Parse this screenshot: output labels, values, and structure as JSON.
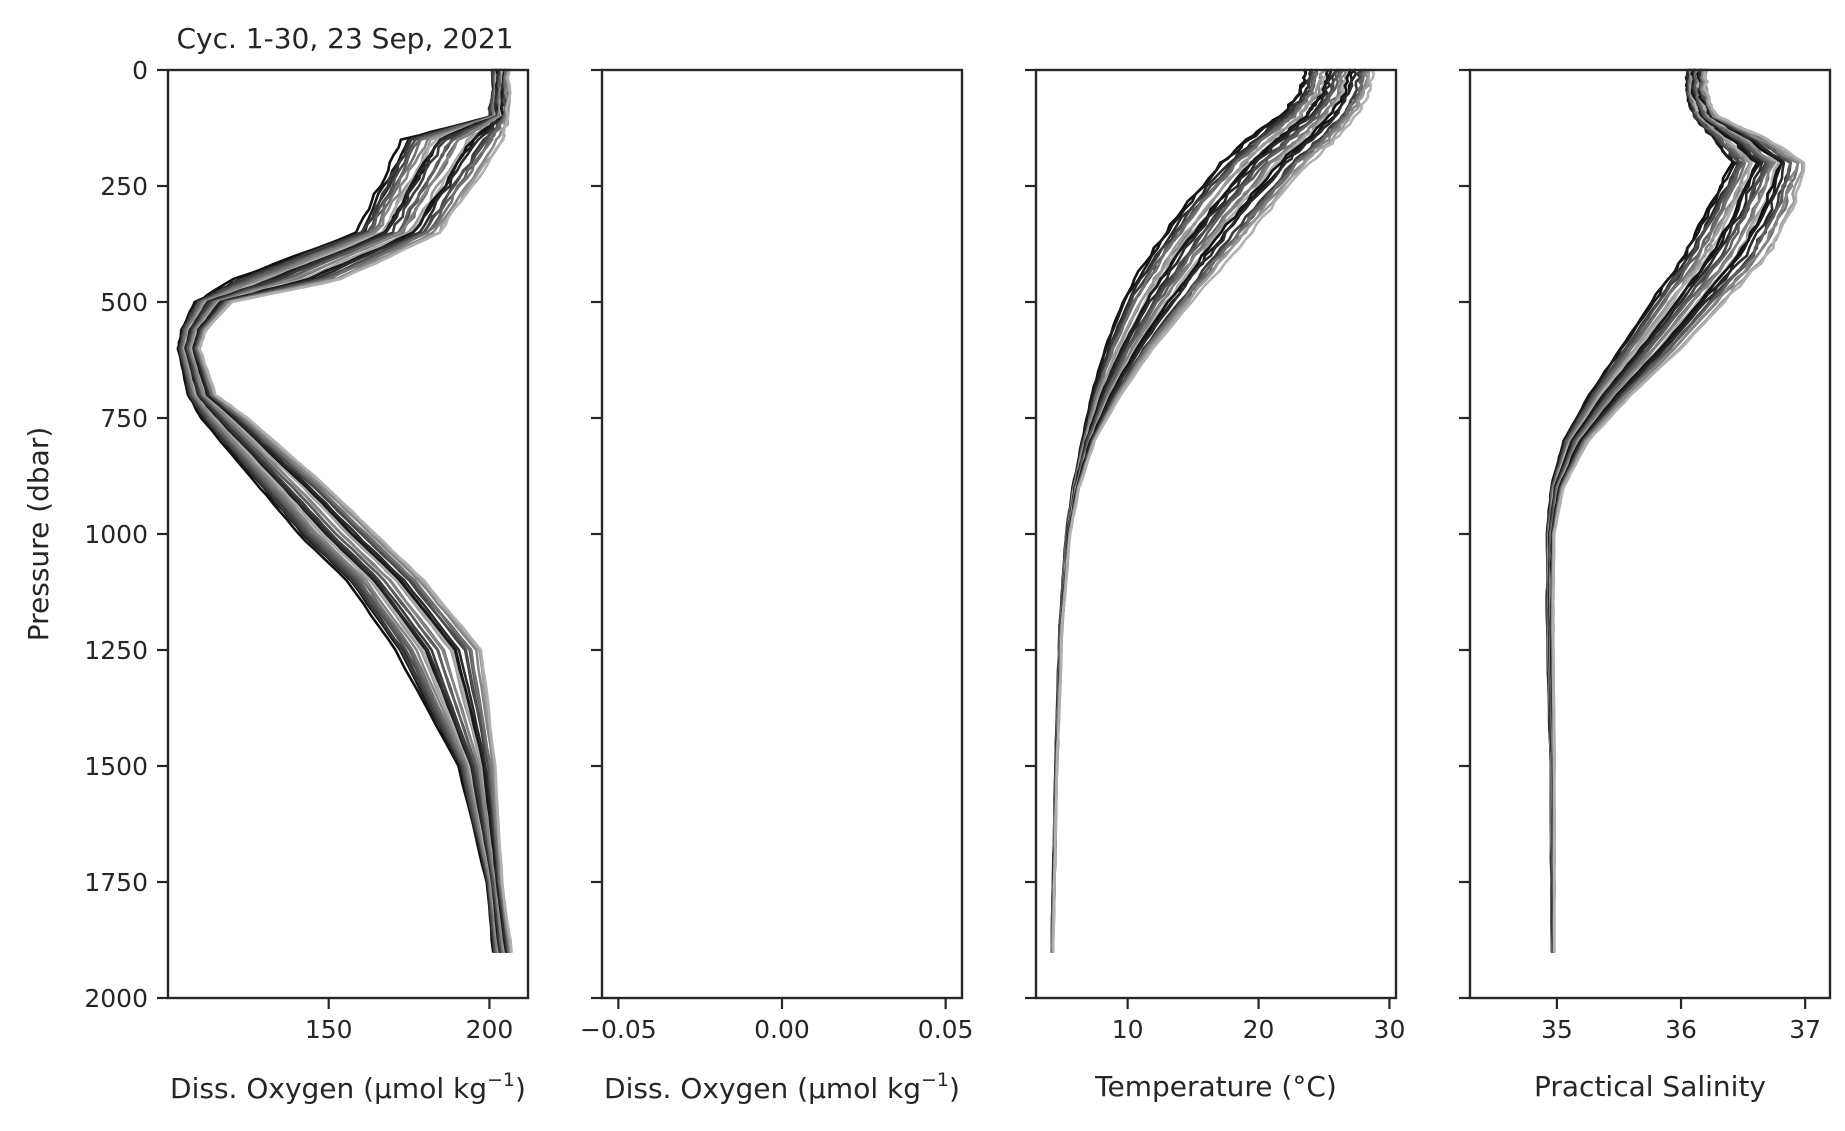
{
  "chart_data": [
    {
      "type": "line",
      "title": "Cyc. 1-30, 23 Sep, 2021",
      "xlabel": "Diss. Oxygen (μmol kg",
      "xlabel_sup": "−1",
      "xlabel_close": ")",
      "ylabel": "Pressure (dbar)",
      "xlim": [
        100,
        212
      ],
      "ylim": [
        2000,
        0
      ],
      "xticks": [
        150,
        200
      ],
      "xtick_labels": [
        "150",
        "200"
      ],
      "yticks": [
        0,
        250,
        500,
        750,
        1000,
        1250,
        1500,
        1750,
        2000
      ],
      "ytick_labels": [
        "0",
        "250",
        "500",
        "750",
        "1000",
        "1250",
        "1500",
        "1750",
        "2000"
      ],
      "n_profiles": 30,
      "pressure": [
        0,
        100,
        150,
        250,
        350,
        450,
        500,
        560,
        600,
        700,
        750,
        900,
        1000,
        1100,
        1250,
        1500,
        1750,
        1900
      ],
      "profile_lo": [
        201,
        200,
        172,
        165,
        158,
        120,
        108,
        104,
        103,
        106,
        110,
        128,
        140,
        155,
        170,
        190,
        199,
        201
      ],
      "profile_hi": [
        206,
        206,
        205,
        195,
        185,
        155,
        120,
        112,
        110,
        115,
        125,
        150,
        165,
        180,
        198,
        202,
        204,
        207
      ]
    },
    {
      "type": "line",
      "title": "",
      "xlabel": "Diss. Oxygen (μmol kg",
      "xlabel_sup": "−1",
      "xlabel_close": ")",
      "xlim": [
        -0.055,
        0.055
      ],
      "ylim": [
        2000,
        0
      ],
      "xticks": [
        -0.05,
        0.0,
        0.05
      ],
      "xtick_labels": [
        "−0.05",
        "0.00",
        "0.05"
      ],
      "series": []
    },
    {
      "type": "line",
      "title": "",
      "xlabel": "Temperature (°C)",
      "xlim": [
        3,
        30.5
      ],
      "ylim": [
        2000,
        0
      ],
      "xticks": [
        10,
        20,
        30
      ],
      "xtick_labels": [
        "10",
        "20",
        "30"
      ],
      "n_profiles": 30,
      "pressure": [
        0,
        50,
        100,
        150,
        200,
        300,
        400,
        500,
        600,
        700,
        800,
        900,
        1000,
        1200,
        1500,
        1900
      ],
      "profile_lo": [
        23.5,
        23,
        21.5,
        19,
        17,
        14,
        11.5,
        9.5,
        8.2,
        7.2,
        6.5,
        5.8,
        5.3,
        4.8,
        4.5,
        4.2
      ],
      "profile_hi": [
        28.8,
        28.5,
        27.5,
        26,
        24,
        21,
        18,
        15,
        12,
        9.5,
        7.5,
        6.3,
        5.6,
        5.0,
        4.6,
        4.3
      ]
    },
    {
      "type": "line",
      "title": "",
      "xlabel": "Practical Salinity",
      "xlim": [
        34.3,
        37.2
      ],
      "ylim": [
        2000,
        0
      ],
      "xticks": [
        35,
        36,
        37
      ],
      "xtick_labels": [
        "35",
        "36",
        "37"
      ],
      "n_profiles": 30,
      "pressure": [
        0,
        50,
        100,
        150,
        200,
        300,
        400,
        500,
        600,
        700,
        800,
        900,
        1000,
        1200,
        1500,
        1900
      ],
      "profile_lo": [
        36.05,
        36.05,
        36.1,
        36.25,
        36.4,
        36.2,
        36.0,
        35.75,
        35.5,
        35.25,
        35.05,
        34.95,
        34.92,
        34.92,
        34.95,
        34.96
      ],
      "profile_hi": [
        36.2,
        36.2,
        36.3,
        36.7,
        37.0,
        36.9,
        36.7,
        36.35,
        36.0,
        35.6,
        35.25,
        35.05,
        34.98,
        34.97,
        34.98,
        34.98
      ]
    }
  ]
}
